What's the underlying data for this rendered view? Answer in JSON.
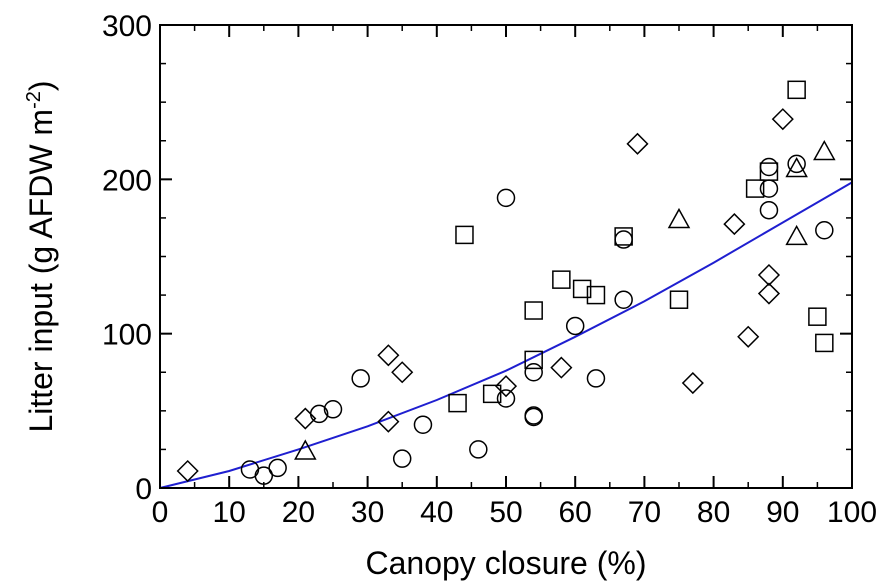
{
  "chart_data": {
    "type": "scatter",
    "title": "",
    "xlabel": "Canopy closure (%)",
    "ylabel": {
      "prefix": "Litter input (g AFDW m",
      "superscript": "-2",
      "suffix": ")"
    },
    "xlim": [
      0,
      100
    ],
    "ylim": [
      0,
      300
    ],
    "xticks": [
      "0",
      "10",
      "20",
      "30",
      "40",
      "50",
      "60",
      "70",
      "80",
      "90",
      "100"
    ],
    "yticks": [
      "0",
      "100",
      "200",
      "300"
    ],
    "grid": false,
    "legend": "none",
    "colors": {
      "fit_line": "#1f1fd0",
      "markers": "#000000"
    },
    "series": [
      {
        "marker": "circle",
        "points": [
          {
            "x": 13,
            "y": 12
          },
          {
            "x": 15,
            "y": 8
          },
          {
            "x": 17,
            "y": 13
          },
          {
            "x": 23,
            "y": 48
          },
          {
            "x": 25,
            "y": 51
          },
          {
            "x": 29,
            "y": 71
          },
          {
            "x": 35,
            "y": 19
          },
          {
            "x": 38,
            "y": 41
          },
          {
            "x": 46,
            "y": 25
          },
          {
            "x": 50,
            "y": 58
          },
          {
            "x": 50,
            "y": 188
          },
          {
            "x": 54,
            "y": 47
          },
          {
            "x": 54,
            "y": 46
          },
          {
            "x": 54,
            "y": 75
          },
          {
            "x": 60,
            "y": 105
          },
          {
            "x": 63,
            "y": 71
          },
          {
            "x": 67,
            "y": 161
          },
          {
            "x": 67,
            "y": 122
          },
          {
            "x": 88,
            "y": 180
          },
          {
            "x": 88,
            "y": 194
          },
          {
            "x": 88,
            "y": 208
          },
          {
            "x": 92,
            "y": 210
          },
          {
            "x": 96,
            "y": 167
          }
        ]
      },
      {
        "marker": "square",
        "points": [
          {
            "x": 43,
            "y": 55
          },
          {
            "x": 44,
            "y": 164
          },
          {
            "x": 48,
            "y": 61
          },
          {
            "x": 54,
            "y": 83
          },
          {
            "x": 54,
            "y": 115
          },
          {
            "x": 58,
            "y": 135
          },
          {
            "x": 61,
            "y": 129
          },
          {
            "x": 63,
            "y": 125
          },
          {
            "x": 67,
            "y": 163
          },
          {
            "x": 75,
            "y": 122
          },
          {
            "x": 86,
            "y": 194
          },
          {
            "x": 88,
            "y": 205
          },
          {
            "x": 92,
            "y": 258
          },
          {
            "x": 95,
            "y": 111
          },
          {
            "x": 96,
            "y": 94
          }
        ]
      },
      {
        "marker": "diamond",
        "points": [
          {
            "x": 4,
            "y": 11
          },
          {
            "x": 21,
            "y": 45
          },
          {
            "x": 33,
            "y": 86
          },
          {
            "x": 33,
            "y": 43
          },
          {
            "x": 35,
            "y": 75
          },
          {
            "x": 50,
            "y": 66
          },
          {
            "x": 58,
            "y": 78
          },
          {
            "x": 69,
            "y": 223
          },
          {
            "x": 77,
            "y": 68
          },
          {
            "x": 83,
            "y": 171
          },
          {
            "x": 85,
            "y": 98
          },
          {
            "x": 88,
            "y": 138
          },
          {
            "x": 88,
            "y": 126
          },
          {
            "x": 90,
            "y": 239
          }
        ]
      },
      {
        "marker": "triangle",
        "points": [
          {
            "x": 21,
            "y": 24
          },
          {
            "x": 75,
            "y": 174
          },
          {
            "x": 92,
            "y": 163
          },
          {
            "x": 92,
            "y": 207
          },
          {
            "x": 96,
            "y": 218
          }
        ]
      }
    ],
    "fit_line": {
      "points": [
        {
          "x": 0,
          "y": 0
        },
        {
          "x": 10,
          "y": 11
        },
        {
          "x": 20,
          "y": 25
        },
        {
          "x": 30,
          "y": 40
        },
        {
          "x": 40,
          "y": 57
        },
        {
          "x": 50,
          "y": 76
        },
        {
          "x": 60,
          "y": 98
        },
        {
          "x": 70,
          "y": 121
        },
        {
          "x": 80,
          "y": 146
        },
        {
          "x": 90,
          "y": 172
        },
        {
          "x": 100,
          "y": 198
        }
      ]
    }
  }
}
